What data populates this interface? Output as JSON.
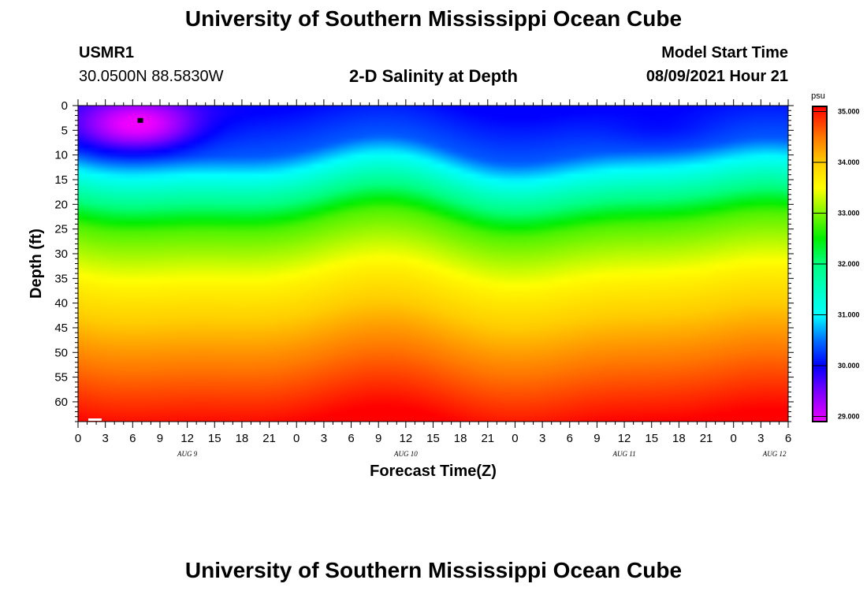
{
  "header": {
    "title": "University of Southern Mississippi Ocean Cube",
    "station": "USMR1",
    "coords": "30.0500N  88.5830W",
    "chart_title": "2-D Salinity at Depth",
    "model_label": "Model Start Time",
    "model_time": "08/09/2021 Hour 21"
  },
  "footer": {
    "title": "University of Southern Mississippi Ocean Cube"
  },
  "chart_data": {
    "type": "heatmap",
    "title": "2-D Salinity at Depth",
    "xlabel": "Forecast Time(Z)",
    "ylabel": "Depth (ft)",
    "x_tick_labels": [
      "0",
      "3",
      "6",
      "9",
      "12",
      "15",
      "18",
      "21",
      "0",
      "3",
      "6",
      "9",
      "12",
      "15",
      "18",
      "21",
      "0",
      "3",
      "6",
      "9",
      "12",
      "15",
      "18",
      "21",
      "0",
      "3",
      "6"
    ],
    "date_labels": [
      {
        "label": "AUG 9",
        "hour_index": 4
      },
      {
        "label": "AUG 10",
        "hour_index": 12
      },
      {
        "label": "AUG 11",
        "hour_index": 20
      },
      {
        "label": "AUG 12",
        "hour_index": 25.5
      }
    ],
    "xlim": [
      0,
      78
    ],
    "ylim": [
      0,
      64
    ],
    "y_ticks": [
      0,
      5,
      10,
      15,
      20,
      25,
      30,
      35,
      40,
      45,
      50,
      55,
      60
    ],
    "colorbar": {
      "unit": "psu",
      "min": 28.9,
      "max": 35.1,
      "tick_labels": [
        "35.000",
        "34.000",
        "33.000",
        "32.000",
        "31.000",
        "30.000",
        "29.000"
      ],
      "tick_values": [
        35,
        34,
        33,
        32,
        31,
        30,
        29
      ]
    },
    "color_stops": [
      {
        "value": 28.9,
        "color": "#ee00ff"
      },
      {
        "value": 29.5,
        "color": "#7a00ff"
      },
      {
        "value": 30.0,
        "color": "#0000ff"
      },
      {
        "value": 30.5,
        "color": "#0070ff"
      },
      {
        "value": 31.0,
        "color": "#00ffff"
      },
      {
        "value": 32.0,
        "color": "#00ff80"
      },
      {
        "value": 32.5,
        "color": "#00ee00"
      },
      {
        "value": 33.5,
        "color": "#ffff00"
      },
      {
        "value": 34.0,
        "color": "#ffcc00"
      },
      {
        "value": 34.5,
        "color": "#ff7700"
      },
      {
        "value": 35.1,
        "color": "#ff0000"
      }
    ],
    "marker": {
      "hour": 6.8,
      "depth": 3
    }
  }
}
